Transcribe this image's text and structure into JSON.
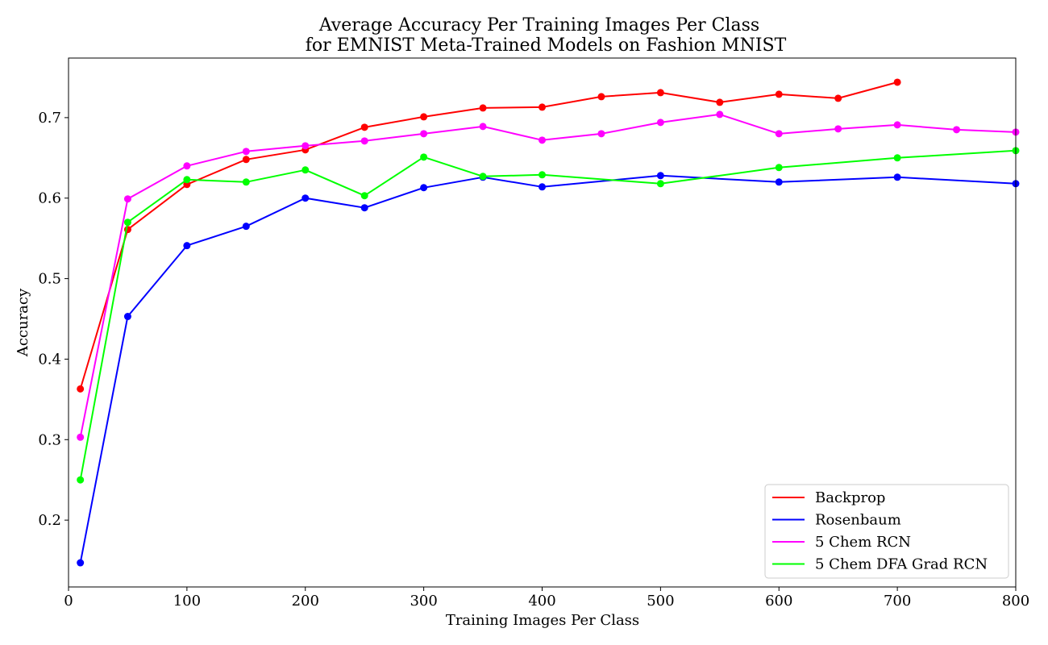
{
  "chart_data": {
    "type": "line",
    "title_line1": "Average Accuracy Per Training Images Per Class",
    "title_line2": "for EMNIST Meta-Trained Models on Fashion MNIST",
    "xlabel": "Training Images Per Class",
    "ylabel": "Accuracy",
    "xlim": [
      0,
      800
    ],
    "ylim": [
      0.117,
      0.774
    ],
    "xticks": [
      0,
      100,
      200,
      300,
      400,
      500,
      600,
      700,
      800
    ],
    "yticks": [
      0.2,
      0.3,
      0.4,
      0.5,
      0.6,
      0.7
    ],
    "xtick_labels": [
      "0",
      "100",
      "200",
      "300",
      "400",
      "500",
      "600",
      "700",
      "800"
    ],
    "ytick_labels": [
      "0.2",
      "0.3",
      "0.4",
      "0.5",
      "0.6",
      "0.7"
    ],
    "grid": false,
    "legend_position": "bottom-right",
    "series": [
      {
        "name": "Backprop",
        "color": "#ff0000",
        "x": [
          10,
          50,
          100,
          150,
          200,
          250,
          300,
          350,
          400,
          450,
          500,
          550,
          600,
          650,
          700
        ],
        "y": [
          0.363,
          0.561,
          0.617,
          0.648,
          0.66,
          0.688,
          0.701,
          0.712,
          0.713,
          0.726,
          0.731,
          0.719,
          0.729,
          0.724,
          0.744
        ]
      },
      {
        "name": "Rosenbaum",
        "color": "#0000ff",
        "x": [
          10,
          50,
          100,
          150,
          200,
          250,
          300,
          350,
          400,
          500,
          600,
          700,
          800
        ],
        "y": [
          0.147,
          0.453,
          0.541,
          0.565,
          0.6,
          0.588,
          0.613,
          0.626,
          0.614,
          0.628,
          0.62,
          0.626,
          0.618
        ]
      },
      {
        "name": "5 Chem RCN",
        "color": "#ff00ff",
        "x": [
          10,
          50,
          100,
          150,
          200,
          250,
          300,
          350,
          400,
          450,
          500,
          550,
          600,
          650,
          700,
          750,
          800
        ],
        "y": [
          0.303,
          0.599,
          0.64,
          0.658,
          0.665,
          0.671,
          0.68,
          0.689,
          0.672,
          0.68,
          0.694,
          0.704,
          0.68,
          0.686,
          0.691,
          0.685,
          0.682
        ]
      },
      {
        "name": "5 Chem DFA Grad RCN",
        "color": "#00ff00",
        "x": [
          10,
          50,
          100,
          150,
          200,
          250,
          300,
          350,
          400,
          500,
          600,
          700,
          800
        ],
        "y": [
          0.25,
          0.57,
          0.623,
          0.62,
          0.635,
          0.603,
          0.651,
          0.627,
          0.629,
          0.618,
          0.638,
          0.65,
          0.659
        ]
      }
    ]
  }
}
